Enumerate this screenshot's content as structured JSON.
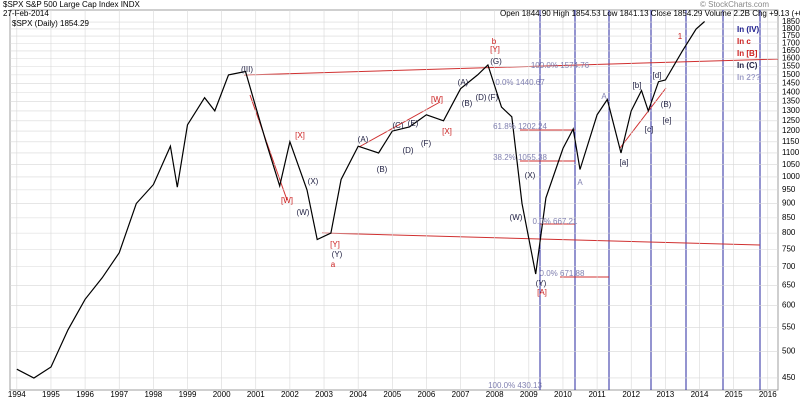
{
  "chart_data": {
    "type": "line",
    "title": "$SPX S&P 500 Large Cap Index INDX",
    "subtitle": "27-Feb-2014",
    "quote": "Open 1844.90  High 1854.53  Low 1841.13  Close 1854.29  Volume 2.2B  Chg +9.13 (+0.49%)",
    "credit": "© StockCharts.com",
    "yscale": "log",
    "grid": true,
    "xlim": [
      1993.8,
      2016.3
    ],
    "ylim": [
      429,
      1941
    ],
    "xticks": [
      1994,
      1995,
      1996,
      1997,
      1998,
      1999,
      2000,
      2001,
      2002,
      2003,
      2004,
      2005,
      2006,
      2007,
      2008,
      2009,
      2010,
      2011,
      2012,
      2013,
      2014,
      2015,
      2016
    ],
    "yticks": [
      450,
      500,
      550,
      600,
      650,
      700,
      750,
      800,
      850,
      900,
      950,
      1000,
      1050,
      1100,
      1150,
      1200,
      1250,
      1300,
      1350,
      1400,
      1450,
      1500,
      1550,
      1600,
      1650,
      1700,
      1750,
      1800,
      1850
    ],
    "x": [
      1994.0,
      1994.5,
      1995.0,
      1995.5,
      1996.0,
      1996.5,
      1997.0,
      1997.5,
      1998.0,
      1998.5,
      1998.7,
      1999.0,
      1999.5,
      1999.8,
      2000.2,
      2000.7,
      2001.0,
      2001.3,
      2001.7,
      2002.0,
      2002.5,
      2002.8,
      2003.2,
      2003.5,
      2004.0,
      2004.6,
      2005.0,
      2005.5,
      2006.0,
      2006.5,
      2007.0,
      2007.5,
      2007.8,
      2008.2,
      2008.5,
      2008.8,
      2009.2,
      2009.5,
      2010.0,
      2010.3,
      2010.5,
      2011.0,
      2011.3,
      2011.7,
      2012.0,
      2012.3,
      2012.5,
      2012.8,
      2013.0,
      2013.5,
      2013.9,
      2014.15
    ],
    "series": [
      {
        "name": "$SPX (Daily) 1854.29",
        "color": "#000000",
        "values": [
          466,
          450,
          470,
          545,
          615,
          670,
          740,
          900,
          970,
          1130,
          960,
          1230,
          1370,
          1300,
          1500,
          1520,
          1320,
          1150,
          965,
          1150,
          950,
          780,
          800,
          990,
          1130,
          1100,
          1200,
          1220,
          1280,
          1250,
          1420,
          1500,
          1560,
          1320,
          1270,
          900,
          680,
          920,
          1120,
          1210,
          1030,
          1280,
          1360,
          1100,
          1300,
          1410,
          1300,
          1460,
          1470,
          1650,
          1800,
          1854
        ]
      }
    ],
    "legend_right": [
      {
        "text": "In (IV)",
        "color": "#1a1a8c"
      },
      {
        "text": "In c",
        "color": "#cc2020"
      },
      {
        "text": "In [B]",
        "color": "#cc2020"
      },
      {
        "text": "In (C)",
        "color": "#222244"
      },
      {
        "text": "In 2??",
        "color": "#a0a0c8"
      }
    ],
    "annotations": [
      {
        "text": "(III)",
        "color": "#222244"
      },
      {
        "text": "[X]",
        "color": "#cc2020"
      },
      {
        "text": "[W]",
        "color": "#cc2020"
      },
      {
        "text": "(X)",
        "color": "#222244"
      },
      {
        "text": "(W)",
        "color": "#222244"
      },
      {
        "text": "a",
        "color": "#cc2020"
      },
      {
        "text": "[Y]",
        "color": "#cc2020"
      },
      {
        "text": "(Y)",
        "color": "#222244"
      },
      {
        "text": "(A)",
        "color": "#222244"
      },
      {
        "text": "(B)",
        "color": "#222244"
      },
      {
        "text": "(C)",
        "color": "#222244"
      },
      {
        "text": "(D)",
        "color": "#222244"
      },
      {
        "text": "(E)",
        "color": "#222244"
      },
      {
        "text": "(F)",
        "color": "#222244"
      },
      {
        "text": "[W]",
        "color": "#cc2020"
      },
      {
        "text": "[X]",
        "color": "#cc2020"
      },
      {
        "text": "(A)",
        "color": "#222244"
      },
      {
        "text": "(B)",
        "color": "#222244"
      },
      {
        "text": "(D)",
        "color": "#222244"
      },
      {
        "text": "(F)",
        "color": "#222244"
      },
      {
        "text": "(G)",
        "color": "#222244"
      },
      {
        "text": "b",
        "color": "#cc2020"
      },
      {
        "text": "[Y]",
        "color": "#cc2020"
      },
      {
        "text": "(X)",
        "color": "#222244"
      },
      {
        "text": "(W)",
        "color": "#222244"
      },
      {
        "text": "(Y)",
        "color": "#222244"
      },
      {
        "text": "[A]",
        "color": "#cc2020"
      },
      {
        "text": "[a]",
        "color": "#222244"
      },
      {
        "text": "[b]",
        "color": "#222244"
      },
      {
        "text": "[c]",
        "color": "#222244"
      },
      {
        "text": "[d]",
        "color": "#222244"
      },
      {
        "text": "[e]",
        "color": "#222244"
      },
      {
        "text": "(B)",
        "color": "#222244"
      },
      {
        "text": "1",
        "color": "#cc2020"
      },
      {
        "text": "A",
        "color": "#8080b0"
      },
      {
        "text": "A",
        "color": "#8080b0"
      },
      {
        "text": "100.0% 1574.76",
        "color": "#8080b0"
      },
      {
        "text": "0.0% 1440.67",
        "color": "#8080b0"
      },
      {
        "text": "61.8% 1202.24",
        "color": "#8080b0"
      },
      {
        "text": "38.2% 1055.38",
        "color": "#8080b0"
      },
      {
        "text": "0.0% 667.21",
        "color": "#8080b0"
      },
      {
        "text": "0.0% 671.88",
        "color": "#8080b0"
      },
      {
        "text": "100.0% 430.13",
        "color": "#8080b0"
      }
    ]
  }
}
